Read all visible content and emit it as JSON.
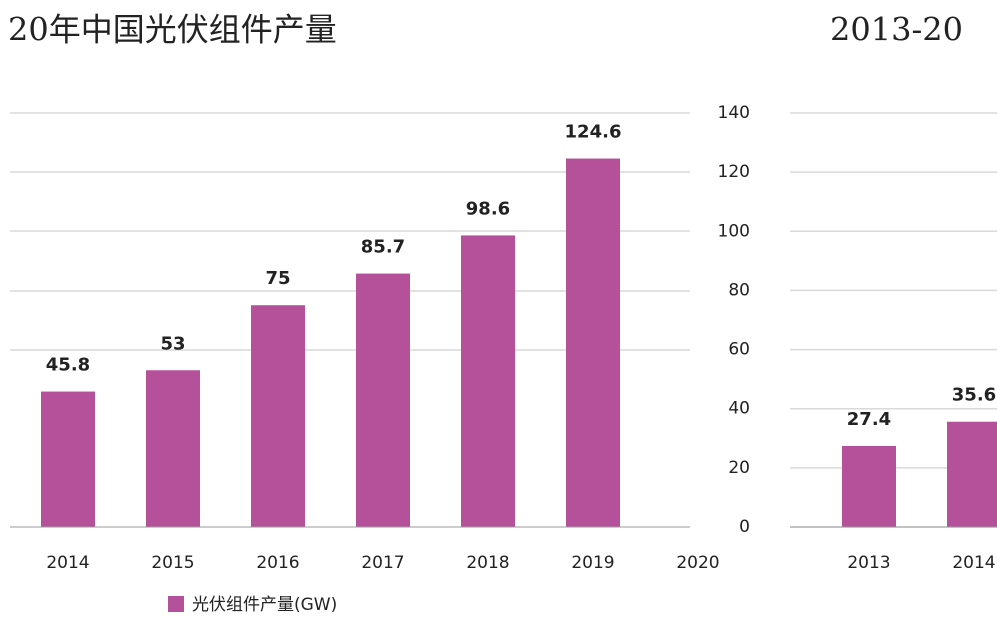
{
  "chart_data": [
    {
      "type": "bar",
      "title": "20年中国光伏组件产量",
      "categories": [
        "2014",
        "2015",
        "2016",
        "2017",
        "2018",
        "2019",
        "2020"
      ],
      "series": [
        {
          "name": "光伏组件产量(GW)",
          "color": "#b5509a",
          "values": [
            45.8,
            53,
            75,
            85.7,
            98.6,
            124.6,
            null
          ]
        }
      ],
      "ylim": [
        0,
        140
      ],
      "grid": true
    },
    {
      "type": "bar",
      "title": "2013-20",
      "categories": [
        "2013",
        "2014"
      ],
      "series": [
        {
          "color": "#b5509a",
          "values": [
            27.4,
            35.6
          ]
        }
      ],
      "ylim": [
        0,
        140
      ],
      "yticks": [
        0,
        20,
        40,
        60,
        80,
        100,
        120,
        140
      ],
      "grid": true
    }
  ]
}
